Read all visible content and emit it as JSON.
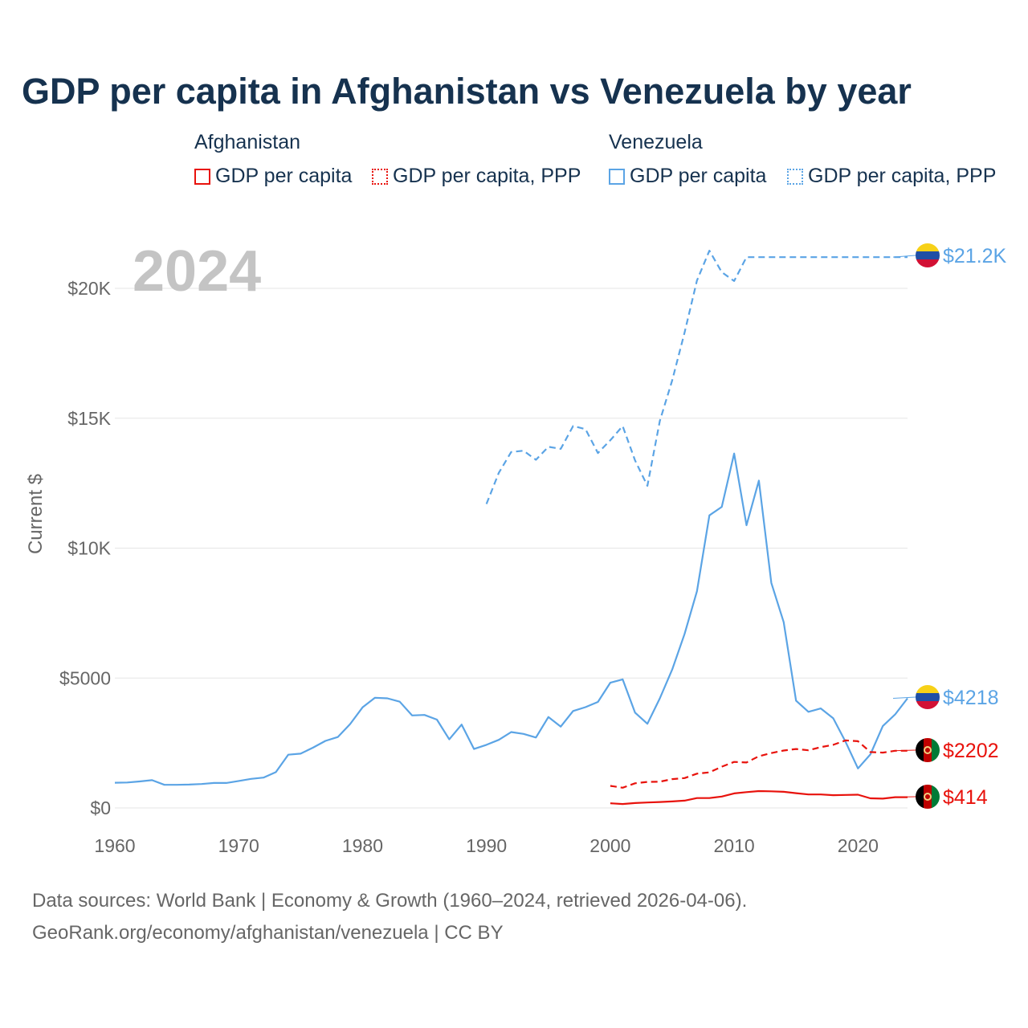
{
  "colors": {
    "afghanistan": "#e8120c",
    "venezuela": "#5ba4e5",
    "title": "#16324f",
    "axis_text": "#666666",
    "year_watermark": "#c4c4c4",
    "grid": "#e6e6e6"
  },
  "legend": {
    "afghanistan": {
      "title": "Afghanistan",
      "gdp": "GDP per capita",
      "ppp": "GDP per capita, PPP"
    },
    "venezuela": {
      "title": "Venezuela",
      "gdp": "GDP per capita",
      "ppp": "GDP per capita, PPP"
    }
  },
  "footer": {
    "line1": "Data sources: World Bank | Economy & Growth (1960–2024, retrieved 2026-04-06).",
    "line2": "GeoRank.org/economy/afghanistan/venezuela | CC BY"
  },
  "chart_data": {
    "type": "line",
    "title": "GDP per capita in Afghanistan vs Venezuela by year",
    "year_label": "2024",
    "xlabel": "",
    "ylabel": "Current $",
    "xlim": [
      1960,
      2024
    ],
    "ylim": [
      0,
      22000
    ],
    "x_ticks": [
      1960,
      1970,
      1980,
      1990,
      2000,
      2010,
      2020
    ],
    "x_tick_labels": [
      "1960",
      "1970",
      "1980",
      "1990",
      "2000",
      "2010",
      "2020"
    ],
    "y_ticks": [
      0,
      5000,
      10000,
      15000,
      20000
    ],
    "y_tick_labels": [
      "$0",
      "$5000",
      "$10K",
      "$15K",
      "$20K"
    ],
    "grid": true,
    "series": [
      {
        "name": "Venezuela GDP per capita",
        "country": "Venezuela",
        "style": "solid",
        "color": "#5ba4e5",
        "end_label": "$4218",
        "x": [
          1960,
          1961,
          1962,
          1963,
          1964,
          1965,
          1966,
          1967,
          1968,
          1969,
          1970,
          1971,
          1972,
          1973,
          1974,
          1975,
          1976,
          1977,
          1978,
          1979,
          1980,
          1981,
          1982,
          1983,
          1984,
          1985,
          1986,
          1987,
          1988,
          1989,
          1990,
          1991,
          1992,
          1993,
          1994,
          1995,
          1996,
          1997,
          1998,
          1999,
          2000,
          2001,
          2002,
          2003,
          2004,
          2005,
          2006,
          2007,
          2008,
          2009,
          2010,
          2011,
          2012,
          2013,
          2014,
          2015,
          2016,
          2017,
          2018,
          2019,
          2020,
          2021,
          2022,
          2023,
          2024
        ],
        "values": [
          970,
          980,
          1020,
          1070,
          890,
          890,
          900,
          920,
          960,
          960,
          1040,
          1120,
          1170,
          1380,
          2050,
          2090,
          2320,
          2580,
          2730,
          3230,
          3870,
          4240,
          4220,
          4090,
          3560,
          3580,
          3400,
          2640,
          3210,
          2270,
          2430,
          2620,
          2920,
          2850,
          2710,
          3500,
          3130,
          3730,
          3880,
          4080,
          4820,
          4950,
          3670,
          3240,
          4220,
          5330,
          6700,
          8340,
          11260,
          11590,
          13640,
          10880,
          12600,
          8660,
          7150,
          4130,
          3700,
          3830,
          3450,
          2540,
          1520,
          2060,
          3150,
          3600,
          4218
        ]
      },
      {
        "name": "Venezuela GDP per capita, PPP",
        "country": "Venezuela",
        "style": "dashed",
        "color": "#5ba4e5",
        "end_label": "$21.2K",
        "x": [
          1990,
          1991,
          1992,
          1993,
          1994,
          1995,
          1996,
          1997,
          1998,
          1999,
          2000,
          2001,
          2002,
          2003,
          2004,
          2005,
          2006,
          2007,
          2008,
          2009,
          2010,
          2011,
          2024
        ],
        "values": [
          11700,
          12900,
          13700,
          13750,
          13400,
          13900,
          13820,
          14700,
          14580,
          13660,
          14150,
          14700,
          13380,
          12400,
          14900,
          16460,
          18300,
          20300,
          21450,
          20620,
          20280,
          21200,
          21200
        ]
      },
      {
        "name": "Afghanistan GDP per capita",
        "country": "Afghanistan",
        "style": "solid",
        "color": "#e8120c",
        "end_label": "$414",
        "x": [
          2000,
          2001,
          2002,
          2003,
          2004,
          2005,
          2006,
          2007,
          2008,
          2009,
          2010,
          2011,
          2012,
          2013,
          2014,
          2015,
          2016,
          2017,
          2018,
          2019,
          2020,
          2021,
          2022,
          2023,
          2024
        ],
        "values": [
          180,
          150,
          190,
          210,
          230,
          250,
          280,
          380,
          380,
          440,
          560,
          610,
          650,
          640,
          620,
          570,
          520,
          520,
          490,
          500,
          510,
          370,
          360,
          414,
          414
        ]
      },
      {
        "name": "Afghanistan GDP per capita, PPP",
        "country": "Afghanistan",
        "style": "dashed",
        "color": "#e8120c",
        "end_label": "$2202",
        "x": [
          2000,
          2001,
          2002,
          2003,
          2004,
          2005,
          2006,
          2007,
          2008,
          2009,
          2010,
          2011,
          2012,
          2013,
          2014,
          2015,
          2016,
          2017,
          2018,
          2019,
          2020,
          2021,
          2022,
          2023,
          2024
        ],
        "values": [
          850,
          780,
          950,
          1000,
          1010,
          1110,
          1150,
          1320,
          1370,
          1590,
          1770,
          1750,
          1990,
          2110,
          2210,
          2270,
          2220,
          2340,
          2430,
          2600,
          2570,
          2150,
          2130,
          2202,
          2202
        ]
      }
    ]
  }
}
